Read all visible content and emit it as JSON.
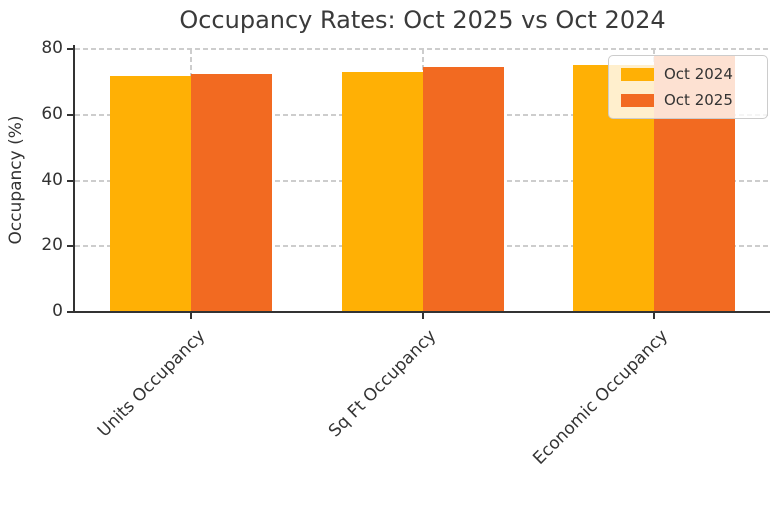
{
  "title": "Occupancy Rates: Oct 2025 vs Oct 2024",
  "colors": {
    "oct_2024_bar": "#FFB005",
    "oct_2025_bar": "#F26A21",
    "grid": "#cdcdcd",
    "axis": "#333333",
    "text": "#333333"
  },
  "chart_data": {
    "type": "bar",
    "title": "Occupancy Rates: Oct 2025 vs Oct 2024",
    "xlabel": "",
    "ylabel": "Occupancy (%)",
    "categories": [
      "Units Occupancy",
      "Sq Ft Occupancy",
      "Economic Occupancy"
    ],
    "series": [
      {
        "name": "Oct 2024",
        "color": "#FFB005",
        "values": [
          71.7,
          72.9,
          75.2
        ]
      },
      {
        "name": "Oct 2025",
        "color": "#F26A21",
        "values": [
          72.5,
          74.6,
          77.8
        ]
      }
    ],
    "ylim": [
      0,
      80
    ],
    "yticks": [
      0,
      20,
      40,
      60,
      80
    ],
    "grid": "dashed, horizontal and vertical",
    "legend_position": "upper right",
    "xtick_rotation": 45
  }
}
